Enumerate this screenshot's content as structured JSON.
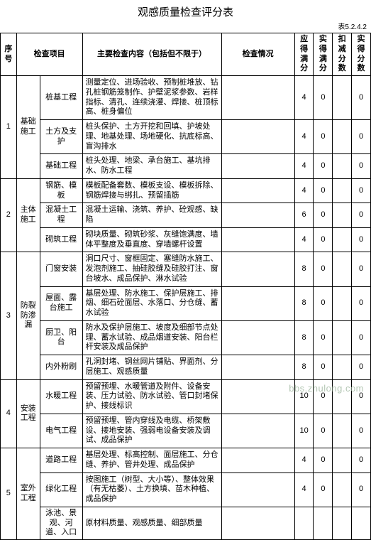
{
  "title": "观感质量检查评分表",
  "table_code": "表5.2.4.2",
  "watermark": "bbs.zhulong.com",
  "headers": {
    "seq": "序号",
    "project": "检查项目",
    "content": "主要检查内容（包括但不限于）",
    "status": "检查情况",
    "score_should": "应得满分",
    "score_actual": "实得满分",
    "score_deduct": "扣减分数",
    "score_final": "实得分数"
  },
  "values": {
    "v4": "4",
    "v6": "6",
    "v8": "8",
    "v10": "10",
    "v0": "0"
  },
  "groups": [
    {
      "seq": "1",
      "proj": "基础施工",
      "rows": [
        {
          "item": "桩基工程",
          "content": "测量定位、进场验收、预制桩堆放、钻孔桩钢筋笼制作、护壁泥浆参数、岩样指标、清孔、连续浇灌、焊接、桩顶标高、桩身偏位",
          "s1": "v4",
          "s2": "v0",
          "s4": "v0"
        },
        {
          "item": "土方及支护",
          "content": "桩头保护、土方开挖和回填、护坡处理、地基处理、场地硬化、抗底标高、盲沟排水",
          "s1": "v4",
          "s2": "v0",
          "s4": "v0"
        },
        {
          "item": "基础工程",
          "content": "桩头处理、地梁、承台施工、基坑排水、防水工程",
          "s1": "v4",
          "s2": "v0",
          "s4": "v0"
        }
      ]
    },
    {
      "seq": "2",
      "proj": "主体施工",
      "rows": [
        {
          "item": "钢筋、模板",
          "content": "模板配备套数、模板支设、模板拆除、钢筋焊接与绑扎、预留插筋",
          "s1": "v4",
          "s2": "v0",
          "s4": "v0"
        },
        {
          "item": "混凝土工程",
          "content": "混凝土运输、浇筑、养护、砼观感、缺陷",
          "s1": "v6",
          "s2": "v0",
          "s4": "v0"
        },
        {
          "item": "砌筑工程",
          "content": "砌块质量、砌筑砂浆、灰缝饱满度、墙体平整度及垂直度、穿墙螺杆设置",
          "s1": "v4",
          "s2": "v0",
          "s4": "v0"
        }
      ]
    },
    {
      "seq": "3",
      "proj": "防裂防渗漏",
      "rows": [
        {
          "item": "门窗安装",
          "content": "洞口尺寸、窗框固定、塞缝防水施工、发泡剂施工、抽硅胶缝及硅胶打注、窗台坡水、成品保护、淋水试验",
          "s1": "v8",
          "s2": "v0",
          "s4": "v0"
        },
        {
          "item": "屋面、露台施工",
          "content": "基层处理、防水施工、保护层施工、排烟、细石砼面层、水落口、分仓缝、蓄水试验",
          "s1": "v8",
          "s2": "v0",
          "s4": "v0"
        },
        {
          "item": "厨卫、阳台",
          "content": "防水及保护层施工、坡度及细部节点处理、蓄水试验、成品烟道安装、阳台栏杆安装及成品保护",
          "s1": "v8",
          "s2": "v0",
          "s4": "v0"
        },
        {
          "item": "内外粉刷",
          "content": "孔洞封堵、钢丝网片铺贴、界面剂、分层施工、观感质量",
          "s1": "v8",
          "s2": "v0",
          "s4": "v0"
        }
      ]
    },
    {
      "seq": "4",
      "proj": "安装工程",
      "rows": [
        {
          "item": "水暖工程",
          "content": "预留预埋、水暖管道及附件、设备安装、压力试验、防水试验、管口封堵保护、接线标识",
          "s1": "v10",
          "s2": "v0",
          "s4": "v0"
        },
        {
          "item": "电气工程",
          "content": "预留预埋、管内穿线及电缆、桥架敷设、接地安装、强弱电设备安装及调试、成品保护",
          "s1": "v10",
          "s2": "v0",
          "s4": "v0"
        }
      ]
    },
    {
      "seq": "5",
      "proj": "室外工程",
      "rows": [
        {
          "item": "道路工程",
          "content": "基层处理、标高控制、面层施工、分仓缝、养护、管井处理、成品保护",
          "s1": "v4",
          "s2": "v0",
          "s4": "v0"
        },
        {
          "item": "绿化工程",
          "content": "按图施工（树型、大小等）、整体效果（有无枯萎）、土方换填、苗木种植、成品保护",
          "s1": "v4",
          "s2": "v0",
          "s4": "v0"
        },
        {
          "item": "泳池、景观、河道、入口",
          "content": "原材料质量、观感质量、细部质量",
          "s1": "",
          "s2": "",
          "s4": ""
        }
      ]
    }
  ]
}
